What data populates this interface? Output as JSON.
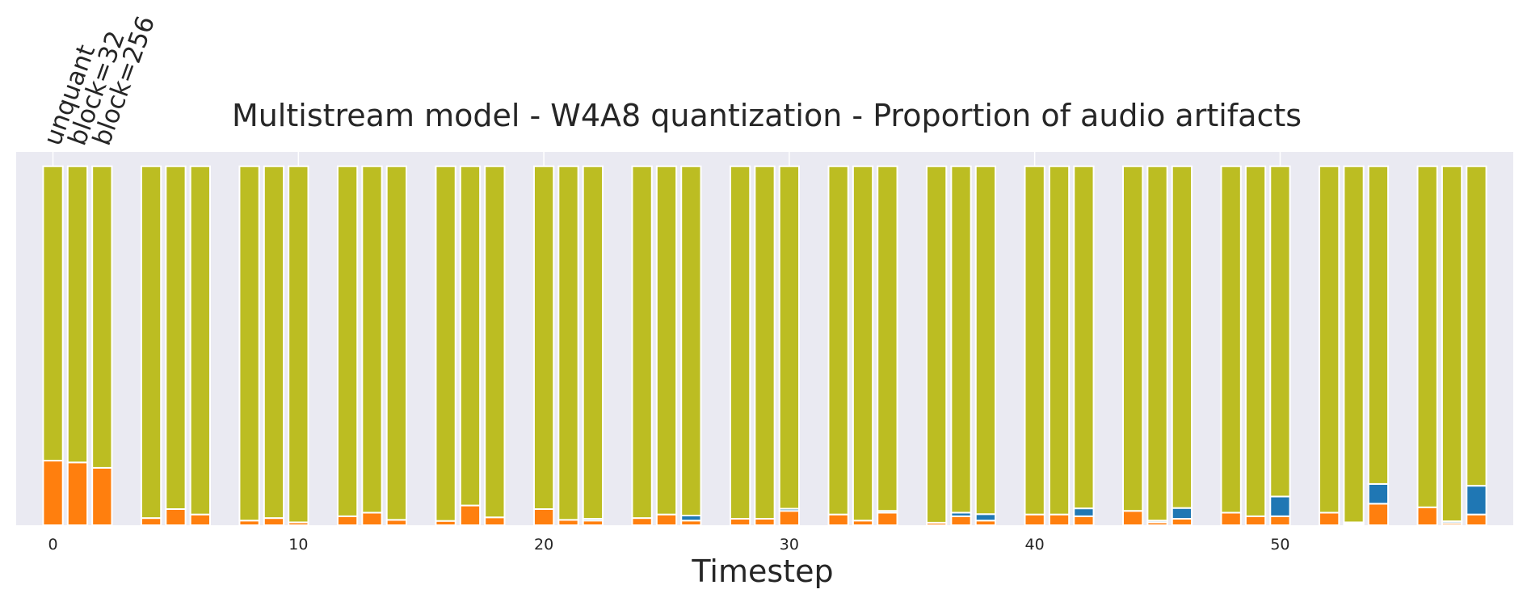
{
  "chart_data": {
    "type": "bar",
    "title": "Multistream model - W4A8 quantization - Proportion of audio artifacts",
    "xlabel": "Timestep",
    "ylabel": "",
    "stacked": true,
    "normalized": true,
    "xlim": [
      -1.5,
      59.5
    ],
    "ylim": [
      0,
      1.04
    ],
    "grid": true,
    "background": "#eaeaf2",
    "xticks": [
      0,
      10,
      20,
      30,
      40,
      50
    ],
    "group_labels": [
      "unquant",
      "block=32",
      "block=256"
    ],
    "x": [
      0,
      1,
      2,
      4,
      5,
      6,
      8,
      9,
      10,
      12,
      13,
      14,
      16,
      17,
      18,
      20,
      21,
      22,
      24,
      25,
      26,
      28,
      29,
      30,
      32,
      33,
      34,
      36,
      37,
      38,
      40,
      41,
      42,
      44,
      45,
      46,
      48,
      49,
      50,
      52,
      53,
      54,
      56,
      57,
      58
    ],
    "colors": {
      "orange": "#ff7f0e",
      "blue": "#1f77b4",
      "olive": "#bcbd22"
    },
    "series": [
      {
        "color": "orange",
        "values": [
          0.18,
          0.175,
          0.16,
          0.02,
          0.045,
          0.03,
          0.013,
          0.02,
          0.008,
          0.025,
          0.035,
          0.015,
          0.012,
          0.055,
          0.022,
          0.045,
          0.015,
          0.013,
          0.02,
          0.03,
          0.013,
          0.018,
          0.018,
          0.04,
          0.03,
          0.013,
          0.035,
          0.007,
          0.025,
          0.013,
          0.03,
          0.03,
          0.025,
          0.04,
          0.008,
          0.018,
          0.035,
          0.025,
          0.025,
          0.035,
          0.004,
          0.06,
          0.05,
          0.006,
          0.03
        ]
      },
      {
        "color": "blue",
        "values": [
          0,
          0,
          0,
          0,
          0,
          0,
          0,
          0,
          0,
          0,
          0,
          0,
          0,
          0,
          0,
          0,
          0,
          0.005,
          0,
          0,
          0.014,
          0,
          0,
          0.006,
          0,
          0,
          0.005,
          0,
          0.01,
          0.018,
          0,
          0,
          0.022,
          0,
          0.005,
          0.03,
          0,
          0,
          0.055,
          0,
          0.004,
          0.055,
          0,
          0.005,
          0.08
        ]
      },
      {
        "color": "olive",
        "values": [
          0.82,
          0.825,
          0.84,
          0.98,
          0.955,
          0.97,
          0.987,
          0.98,
          0.992,
          0.975,
          0.965,
          0.985,
          0.988,
          0.945,
          0.978,
          0.955,
          0.985,
          0.982,
          0.98,
          0.97,
          0.973,
          0.982,
          0.982,
          0.954,
          0.97,
          0.987,
          0.96,
          0.993,
          0.965,
          0.969,
          0.97,
          0.97,
          0.953,
          0.96,
          0.987,
          0.952,
          0.965,
          0.975,
          0.92,
          0.965,
          0.992,
          0.885,
          0.95,
          0.989,
          0.89
        ]
      }
    ]
  }
}
